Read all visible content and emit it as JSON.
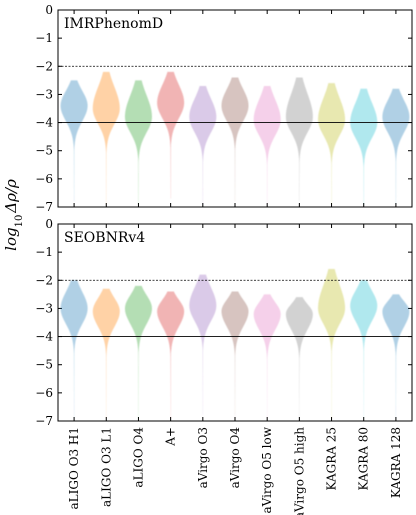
{
  "chart_data": {
    "type": "violin",
    "ylabel": "log10 Δρ/ρ",
    "ylabel_main": "log",
    "ylabel_sub": "10",
    "ylabel_rest": "Δρ/ρ",
    "ylim": [
      -7,
      0
    ],
    "yticks": [
      0,
      -1,
      -2,
      -3,
      -4,
      -5,
      -6,
      -7
    ],
    "ytick_labels": [
      "0",
      "−1",
      "−2",
      "−3",
      "−4",
      "−5",
      "−6",
      "−7"
    ],
    "categories": [
      "aLIGO O3 H1",
      "aLIGO O3 L1",
      "aLIGO O4",
      "A+",
      "aVirgo O3",
      "aVirgo O4",
      "aVirgo O5 low",
      "aVirgo O5 high",
      "KAGRA 25",
      "KAGRA 80",
      "KAGRA 128"
    ],
    "colors": [
      "#1f77b4",
      "#ff7f0e",
      "#2ca02c",
      "#d62728",
      "#9467bd",
      "#8c564b",
      "#e377c2",
      "#7f7f7f",
      "#bcbd22",
      "#17becf",
      "#1f77b4"
    ],
    "reference_lines": [
      {
        "y": -2,
        "style": "dotted"
      },
      {
        "y": -4,
        "style": "solid"
      }
    ],
    "panels": [
      {
        "label": "IMRPhenomD",
        "violins": [
          {
            "category": "aLIGO O3 H1",
            "median": -3.4,
            "min": -6.8,
            "max": -2.5
          },
          {
            "category": "aLIGO O3 L1",
            "median": -3.5,
            "min": -6.9,
            "max": -2.2
          },
          {
            "category": "aLIGO O4",
            "median": -3.8,
            "min": -6.9,
            "max": -2.5
          },
          {
            "category": "A+",
            "median": -3.3,
            "min": -6.7,
            "max": -2.2
          },
          {
            "category": "aVirgo O3",
            "median": -3.8,
            "min": -6.9,
            "max": -2.7
          },
          {
            "category": "aVirgo O4",
            "median": -3.4,
            "min": -6.8,
            "max": -2.4
          },
          {
            "category": "aVirgo O5 low",
            "median": -3.9,
            "min": -6.9,
            "max": -2.7
          },
          {
            "category": "aVirgo O5 high",
            "median": -3.8,
            "min": -6.8,
            "max": -2.4
          },
          {
            "category": "KAGRA 25",
            "median": -3.9,
            "min": -6.9,
            "max": -2.6
          },
          {
            "category": "KAGRA 80",
            "median": -4.0,
            "min": -6.9,
            "max": -2.8
          },
          {
            "category": "KAGRA 128",
            "median": -3.8,
            "min": -6.9,
            "max": -2.8
          }
        ]
      },
      {
        "label": "SEOBNRv4",
        "violins": [
          {
            "category": "aLIGO O3 H1",
            "median": -3.0,
            "min": -6.9,
            "max": -2.0
          },
          {
            "category": "aLIGO O3 L1",
            "median": -3.1,
            "min": -6.9,
            "max": -2.3
          },
          {
            "category": "aLIGO O4",
            "median": -3.0,
            "min": -6.9,
            "max": -2.2
          },
          {
            "category": "A+",
            "median": -3.1,
            "min": -6.9,
            "max": -2.4
          },
          {
            "category": "aVirgo O3",
            "median": -2.9,
            "min": -6.8,
            "max": -1.8
          },
          {
            "category": "aVirgo O4",
            "median": -3.1,
            "min": -6.9,
            "max": -2.4
          },
          {
            "category": "aVirgo O5 low",
            "median": -3.2,
            "min": -6.9,
            "max": -2.5
          },
          {
            "category": "aVirgo O5 high",
            "median": -3.2,
            "min": -6.9,
            "max": -2.6
          },
          {
            "category": "KAGRA 25",
            "median": -3.0,
            "min": -6.9,
            "max": -1.6
          },
          {
            "category": "KAGRA 80",
            "median": -2.9,
            "min": -6.9,
            "max": -2.0
          },
          {
            "category": "KAGRA 128",
            "median": -3.1,
            "min": -6.9,
            "max": -2.5
          }
        ]
      }
    ]
  }
}
